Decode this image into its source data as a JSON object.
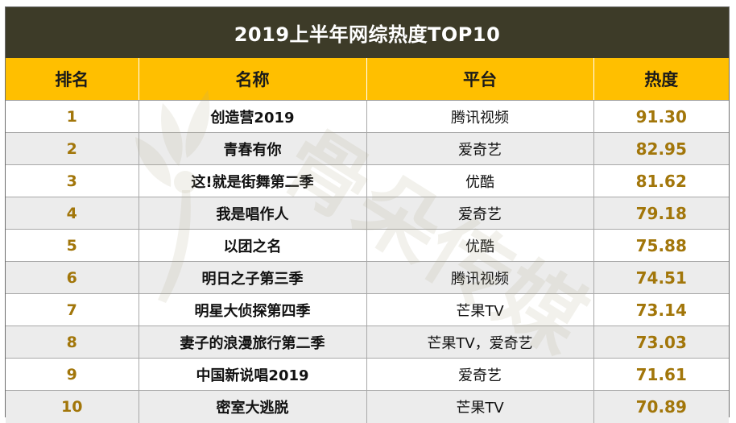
{
  "title": "2019上半年网综热度TOP10",
  "columns": [
    "排名",
    "名称",
    "平台",
    "热度"
  ],
  "rows": [
    {
      "rank": "1",
      "name": "创造营2019",
      "platform": "腾讯视频",
      "heat": "91.30"
    },
    {
      "rank": "2",
      "name": "青春有你",
      "platform": "爱奇艺",
      "heat": "82.95"
    },
    {
      "rank": "3",
      "name": "这!就是街舞第二季",
      "platform": "优酷",
      "heat": "81.62"
    },
    {
      "rank": "4",
      "name": "我是唱作人",
      "platform": "爱奇艺",
      "heat": "79.18"
    },
    {
      "rank": "5",
      "name": "以团之名",
      "platform": "优酷",
      "heat": "75.88"
    },
    {
      "rank": "6",
      "name": "明日之子第三季",
      "platform": "腾讯视频",
      "heat": "74.51"
    },
    {
      "rank": "7",
      "name": "明星大侦探第四季",
      "platform": "芒果TV",
      "heat": "73.14"
    },
    {
      "rank": "8",
      "name": "妻子的浪漫旅行第二季",
      "platform": "芒果TV，爱奇艺",
      "heat": "73.03"
    },
    {
      "rank": "9",
      "name": "中国新说唱2019",
      "platform": "爱奇艺",
      "heat": "71.61"
    },
    {
      "rank": "10",
      "name": "密室大逃脱",
      "platform": "芒果TV",
      "heat": "70.89"
    }
  ],
  "watermark": {
    "text": "骨朵传媒"
  },
  "colors": {
    "title_bg": "#3d3b28",
    "header_bg": "#ffbf00",
    "accent_text": "#a2760a",
    "stripe_bg": "#ececec"
  }
}
